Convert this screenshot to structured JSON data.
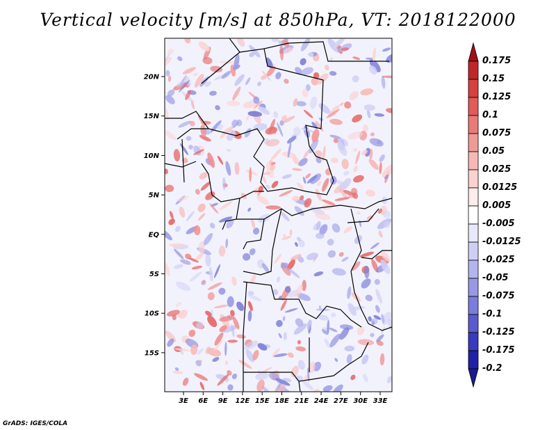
{
  "title": "Vertical velocity [m/s] at 850hPa, VT: 2018122000",
  "credit": "GrADS: IGES/COLA",
  "map": {
    "lat_labels": [
      "20N",
      "15N",
      "10N",
      "5N",
      "EQ",
      "5S",
      "10S",
      "15S"
    ],
    "lon_labels": [
      "3E",
      "6E",
      "9E",
      "12E",
      "15E",
      "18E",
      "21E",
      "24E",
      "27E",
      "30E",
      "33E"
    ]
  },
  "colorbar": {
    "labels": [
      "0.175",
      "0.15",
      "0.125",
      "0.1",
      "0.075",
      "0.05",
      "0.025",
      "0.0125",
      "0.005",
      "-0.005",
      "-0.0125",
      "-0.025",
      "-0.05",
      "-0.075",
      "-0.1",
      "-0.125",
      "-0.175",
      "-0.2"
    ],
    "colors": [
      "#a01018",
      "#c0262c",
      "#d84040",
      "#e25a5a",
      "#ea7a78",
      "#f09a98",
      "#f6b8b6",
      "#fad2d0",
      "#fdeceb",
      "#ffffff",
      "#e8e8fb",
      "#cfcff5",
      "#b4b4ef",
      "#9898e6",
      "#7c7cdc",
      "#5a5ad0",
      "#3a3ac0",
      "#2020a8",
      "#1a1a90"
    ]
  }
}
